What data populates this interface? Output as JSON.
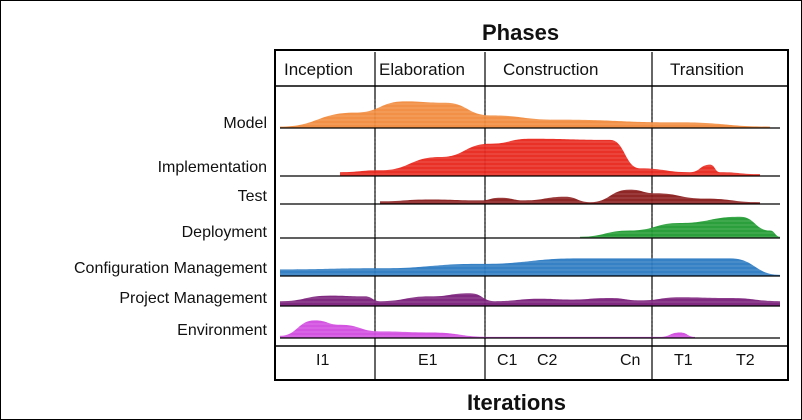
{
  "title": "Phases",
  "xlabel": "Iterations",
  "phases": [
    "Inception",
    "Elaboration",
    "Construction",
    "Transition"
  ],
  "workflows": [
    {
      "name": "Model",
      "color": "#f08a3c",
      "profile": [
        [
          0,
          0.05
        ],
        [
          0.15,
          0.55
        ],
        [
          0.25,
          0.95
        ],
        [
          0.33,
          0.9
        ],
        [
          0.42,
          0.45
        ],
        [
          0.55,
          0.3
        ],
        [
          0.8,
          0.2
        ],
        [
          0.98,
          0.05
        ]
      ]
    },
    {
      "name": "Implementation",
      "color": "#e8261b",
      "profile": [
        [
          0.12,
          0.1
        ],
        [
          0.2,
          0.15
        ],
        [
          0.32,
          0.5
        ],
        [
          0.42,
          0.85
        ],
        [
          0.5,
          0.98
        ],
        [
          0.66,
          0.95
        ],
        [
          0.72,
          0.2
        ],
        [
          0.82,
          0.1
        ],
        [
          0.86,
          0.3
        ],
        [
          0.88,
          0.1
        ],
        [
          0.96,
          0.05
        ]
      ]
    },
    {
      "name": "Test",
      "color": "#8a1b1b",
      "profile": [
        [
          0.2,
          0.15
        ],
        [
          0.3,
          0.25
        ],
        [
          0.4,
          0.2
        ],
        [
          0.44,
          0.35
        ],
        [
          0.49,
          0.2
        ],
        [
          0.57,
          0.4
        ],
        [
          0.62,
          0.1
        ],
        [
          0.7,
          0.8
        ],
        [
          0.75,
          0.6
        ],
        [
          0.85,
          0.3
        ],
        [
          0.96,
          0.1
        ]
      ]
    },
    {
      "name": "Deployment",
      "color": "#1f9a30",
      "profile": [
        [
          0.6,
          0.05
        ],
        [
          0.7,
          0.3
        ],
        [
          0.8,
          0.6
        ],
        [
          0.92,
          0.85
        ],
        [
          0.98,
          0.3
        ],
        [
          1.0,
          0.05
        ]
      ]
    },
    {
      "name": "Configuration Management",
      "color": "#2b79c2",
      "profile": [
        [
          0,
          0.3
        ],
        [
          0.2,
          0.35
        ],
        [
          0.4,
          0.55
        ],
        [
          0.6,
          0.8
        ],
        [
          0.9,
          0.8
        ],
        [
          1.0,
          0.05
        ]
      ]
    },
    {
      "name": "Project Management",
      "color": "#7a1f7a",
      "profile": [
        [
          0,
          0.3
        ],
        [
          0.1,
          0.65
        ],
        [
          0.17,
          0.6
        ],
        [
          0.2,
          0.3
        ],
        [
          0.3,
          0.6
        ],
        [
          0.38,
          0.8
        ],
        [
          0.43,
          0.3
        ],
        [
          0.52,
          0.45
        ],
        [
          0.58,
          0.4
        ],
        [
          0.66,
          0.5
        ],
        [
          0.72,
          0.35
        ],
        [
          0.8,
          0.55
        ],
        [
          0.9,
          0.5
        ],
        [
          1.0,
          0.3
        ]
      ]
    },
    {
      "name": "Environment",
      "color": "#d24be0",
      "profile": [
        [
          0,
          0.1
        ],
        [
          0.07,
          0.8
        ],
        [
          0.12,
          0.6
        ],
        [
          0.2,
          0.3
        ],
        [
          0.3,
          0.25
        ],
        [
          0.42,
          0.05
        ],
        [
          0.55,
          0.05
        ],
        [
          0.76,
          0.05
        ],
        [
          0.8,
          0.25
        ],
        [
          0.83,
          0.05
        ]
      ]
    }
  ],
  "iterations": [
    "I1",
    "E1",
    "C1",
    "C2",
    "Cn",
    "T1",
    "T2"
  ]
}
